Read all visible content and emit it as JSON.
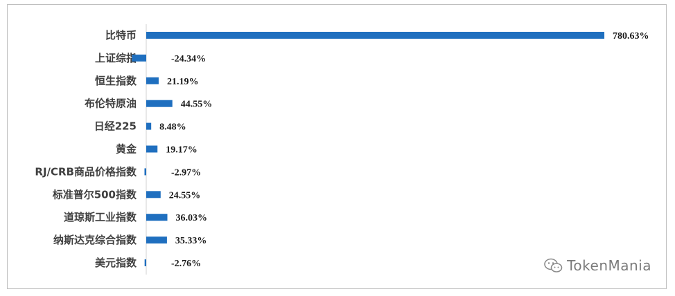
{
  "chart_data": {
    "type": "bar",
    "orientation": "horizontal",
    "categories": [
      "比特币",
      "上证综指",
      "恒生指数",
      "布伦特原油",
      "日经225",
      "黄金",
      "RJ/CRB商品价格指数",
      "标准普尔500指数",
      "道琼斯工业指数",
      "纳斯达克综合指数",
      "美元指数"
    ],
    "values": [
      780.63,
      -24.34,
      21.19,
      44.55,
      8.48,
      19.17,
      -2.97,
      24.55,
      36.03,
      35.33,
      -2.76
    ],
    "value_labels": [
      "780.63%",
      "-24.34%",
      "21.19%",
      "44.55%",
      "8.48%",
      "19.17%",
      "-2.97%",
      "24.55%",
      "36.03%",
      "35.33%",
      "-2.76%"
    ],
    "unit": "%",
    "bar_color": "#1f6fbf",
    "grid": false,
    "legend": "none"
  },
  "watermark": {
    "text": "TokenMania",
    "icon": "wechat-icon"
  }
}
